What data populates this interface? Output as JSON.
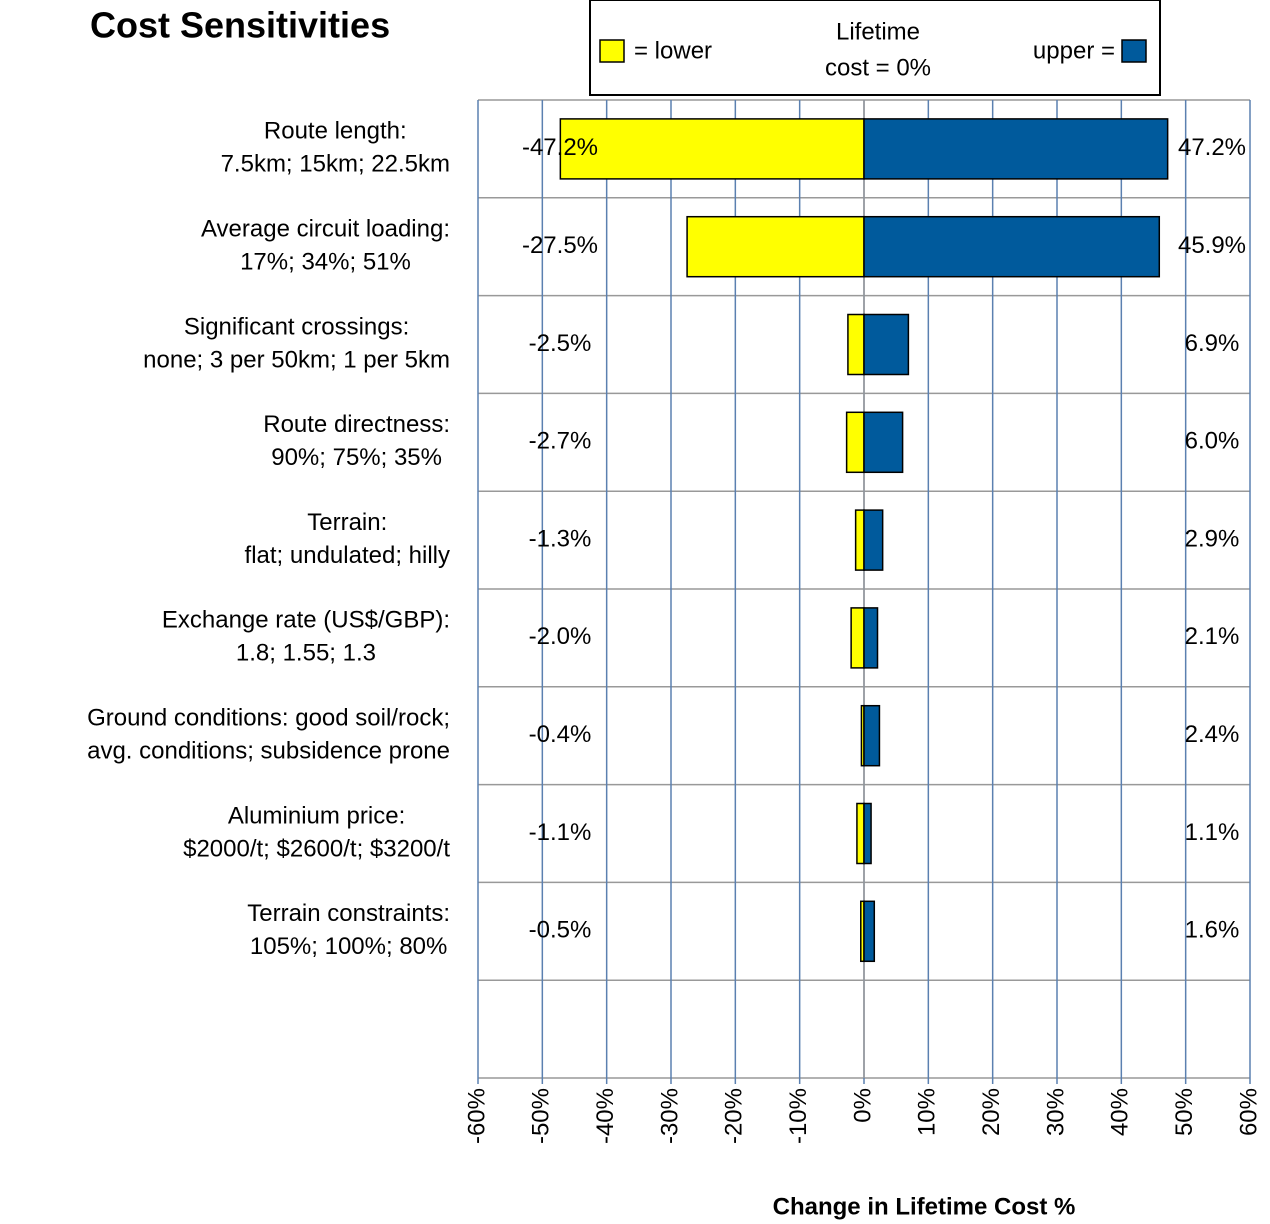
{
  "chart_data": {
    "type": "tornado",
    "title": "Cost Sensitivities",
    "legend_title": [
      "Lifetime",
      "cost = 0%"
    ],
    "x_label": "Change in Lifetime Cost %",
    "categories": [
      [
        "Route length:",
        "7.5km; 15km; 22.5km"
      ],
      [
        "Average circuit loading:",
        "17%; 34%; 51%"
      ],
      [
        "Significant  crossings:",
        "none; 3 per 50km; 1 per 5km"
      ],
      [
        "Route directness:",
        "90%; 75%; 35%"
      ],
      [
        "Terrain:",
        "flat; undulated; hilly"
      ],
      [
        "Exchange rate (US$/GBP):",
        "1.8; 1.55; 1.3"
      ],
      [
        "Ground conditions: good soil/rock;",
        "avg. conditions; subsidence prone"
      ],
      [
        "Aluminium price:",
        "$2000/t; $2600/t; $3200/t"
      ],
      [
        "Terrain constraints:",
        "105%; 100%; 80%"
      ],
      null
    ],
    "series": [
      {
        "name": "= lower",
        "color": "#ffff00",
        "values": [
          -47.2,
          -27.5,
          -2.5,
          -2.7,
          -1.3,
          -2.0,
          -0.4,
          -1.1,
          -0.5,
          null
        ],
        "value_labels": [
          "-47.2%",
          "-27.5%",
          "-2.5%",
          "-2.7%",
          "-1.3%",
          "-2.0%",
          "-0.4%",
          "-1.1%",
          "-0.5%",
          null
        ]
      },
      {
        "name": "upper =",
        "color": "#005a9c",
        "values": [
          47.2,
          45.9,
          6.9,
          6.0,
          2.9,
          2.1,
          2.4,
          1.1,
          1.6,
          null
        ],
        "value_labels": [
          "47.2%",
          "45.9%",
          "6.9%",
          "6.0%",
          "2.9%",
          "2.1%",
          "2.4%",
          "1.1%",
          "1.6%",
          null
        ]
      }
    ],
    "xlim": [
      -60,
      60
    ],
    "xticks": [
      {
        "value": -60,
        "label": "-60%"
      },
      {
        "value": -50,
        "label": "-50%"
      },
      {
        "value": -40,
        "label": "-40%"
      },
      {
        "value": -30,
        "label": "-30%"
      },
      {
        "value": -20,
        "label": "-20%"
      },
      {
        "value": -10,
        "label": "-10%"
      },
      {
        "value": 0,
        "label": "0%"
      },
      {
        "value": 10,
        "label": "10%"
      },
      {
        "value": 20,
        "label": "20%"
      },
      {
        "value": 30,
        "label": "30%"
      },
      {
        "value": 40,
        "label": "40%"
      },
      {
        "value": 50,
        "label": "50%"
      },
      {
        "value": 60,
        "label": "60%"
      }
    ],
    "grid": true
  }
}
